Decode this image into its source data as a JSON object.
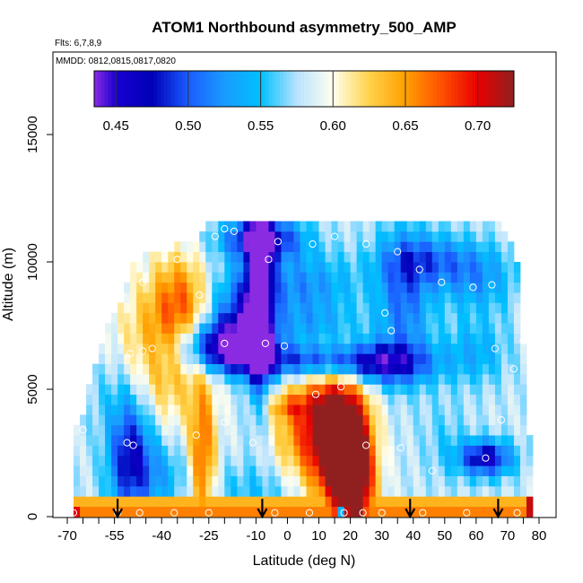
{
  "chart_data": {
    "type": "heatmap",
    "title": "ATOM1 Northbound asymmetry_500_AMP",
    "flights_text": "Flts: 6,7,8,9",
    "dates_text": "MMDD: 0812,0815,0817,0820",
    "xlabel": "Latitude (deg N)",
    "ylabel": "Altitude (m)",
    "xlim": [
      -70,
      80
    ],
    "ylim": [
      0,
      17500
    ],
    "x_ticks": [
      -70,
      -55,
      -40,
      -25,
      -10,
      0,
      10,
      20,
      30,
      40,
      50,
      60,
      70,
      80
    ],
    "x_tick_labels": [
      "-70",
      "-55",
      "-40",
      "-25",
      "-10",
      "0",
      "10",
      "20",
      "30",
      "40",
      "50",
      "60",
      "70",
      "80"
    ],
    "x_minor_ticks": [
      -65,
      -60,
      -50,
      -45,
      -35,
      -30,
      -20,
      -15,
      -5,
      5,
      15,
      25,
      35,
      45,
      55,
      65,
      75
    ],
    "y_ticks": [
      0,
      5000,
      10000,
      15000
    ],
    "y_tick_labels": [
      "0",
      "5000",
      "10000",
      "15000"
    ],
    "colorbar": {
      "vmin": 0.435,
      "vmax": 0.725,
      "ticks": [
        0.45,
        0.5,
        0.55,
        0.6,
        0.65,
        0.7
      ],
      "tick_labels": [
        "0.45",
        "0.50",
        "0.55",
        "0.60",
        "0.65",
        "0.70"
      ],
      "stops": [
        {
          "v": 0.435,
          "c": "#8a2be2"
        },
        {
          "v": 0.45,
          "c": "#1a00d0"
        },
        {
          "v": 0.475,
          "c": "#0000b8"
        },
        {
          "v": 0.5,
          "c": "#1a5cff"
        },
        {
          "v": 0.525,
          "c": "#1a9bff"
        },
        {
          "v": 0.55,
          "c": "#00c0ff"
        },
        {
          "v": 0.575,
          "c": "#b8e2ff"
        },
        {
          "v": 0.6,
          "c": "#ffffee"
        },
        {
          "v": 0.625,
          "c": "#ffd24a"
        },
        {
          "v": 0.65,
          "c": "#ffa000"
        },
        {
          "v": 0.675,
          "c": "#ff5000"
        },
        {
          "v": 0.7,
          "c": "#e80000"
        },
        {
          "v": 0.725,
          "c": "#902020"
        }
      ]
    },
    "field": {
      "x_step": 2,
      "alt_step": 400,
      "max_alt": 11400,
      "top_altitude_by_lat": [
        [
          -68,
          3200
        ],
        [
          -65,
          4000
        ],
        [
          -62,
          5500
        ],
        [
          -58,
          7000
        ],
        [
          -54,
          8000
        ],
        [
          -50,
          9500
        ],
        [
          -44,
          10200
        ],
        [
          -37,
          10300
        ],
        [
          -32,
          10600
        ],
        [
          -28,
          10800
        ],
        [
          -26,
          11400
        ],
        [
          65,
          11400
        ],
        [
          70,
          11000
        ],
        [
          72,
          10600
        ],
        [
          74,
          9400
        ],
        [
          75,
          6800
        ],
        [
          76,
          4000
        ],
        [
          77,
          3000
        ]
      ],
      "base_value": 0.58,
      "features": [
        {
          "x": 17,
          "y": 2800,
          "sx": 6,
          "sy": 1900,
          "a": 0.17
        },
        {
          "x": 8,
          "y": 3600,
          "sx": 9,
          "sy": 1700,
          "a": 0.09
        },
        {
          "x": 22,
          "y": 1200,
          "sx": 4,
          "sy": 1600,
          "a": 0.12
        },
        {
          "x": -27,
          "y": 2200,
          "sx": 3,
          "sy": 2200,
          "a": 0.09
        },
        {
          "x": -40,
          "y": 6500,
          "sx": 10,
          "sy": 2000,
          "a": 0.07
        },
        {
          "x": -34,
          "y": 8600,
          "sx": 6,
          "sy": 1300,
          "a": 0.06
        },
        {
          "x": -50,
          "y": 2400,
          "sx": 5,
          "sy": 1700,
          "a": -0.11
        },
        {
          "x": -40,
          "y": 1700,
          "sx": 6,
          "sy": 1000,
          "a": -0.04
        },
        {
          "x": -10,
          "y": 1000,
          "sx": 12,
          "sy": 800,
          "a": -0.03
        },
        {
          "x": -20,
          "y": 6800,
          "sx": 10,
          "sy": 650,
          "a": -0.13
        },
        {
          "x": -15,
          "y": 8000,
          "sx": 7,
          "sy": 1100,
          "a": -0.08
        },
        {
          "x": -9,
          "y": 8300,
          "sx": 3,
          "sy": 2600,
          "a": -0.15
        },
        {
          "x": -8,
          "y": 10900,
          "sx": 9,
          "sy": 600,
          "a": -0.12
        },
        {
          "x": 5,
          "y": 9000,
          "sx": 12,
          "sy": 900,
          "a": -0.06
        },
        {
          "x": 10,
          "y": 7500,
          "sx": 10,
          "sy": 500,
          "a": -0.04
        },
        {
          "x": 5,
          "y": 6100,
          "sx": 20,
          "sy": 500,
          "a": -0.1
        },
        {
          "x": 30,
          "y": 6000,
          "sx": 12,
          "sy": 600,
          "a": -0.08
        },
        {
          "x": 37,
          "y": 8500,
          "sx": 6,
          "sy": 1900,
          "a": -0.07
        },
        {
          "x": 45,
          "y": 10100,
          "sx": 11,
          "sy": 700,
          "a": -0.06
        },
        {
          "x": 63,
          "y": 2300,
          "sx": 6,
          "sy": 500,
          "a": -0.12
        },
        {
          "x": 50,
          "y": 3000,
          "sx": 5,
          "sy": 1100,
          "a": -0.02
        },
        {
          "x": 60,
          "y": 6500,
          "sx": 7,
          "sy": 900,
          "a": -0.04
        },
        {
          "x": 60,
          "y": 9300,
          "sx": 9,
          "sy": 900,
          "a": -0.05
        },
        {
          "x": 0,
          "y": 4300,
          "sx": 5,
          "sy": 300,
          "a": 0.04
        },
        {
          "x": -55,
          "y": 5000,
          "sx": 8,
          "sy": 1200,
          "a": -0.02
        }
      ],
      "surface": [
        {
          "y_max": 400,
          "value": 0.66
        },
        {
          "y_max": 800,
          "value": 0.64
        }
      ],
      "surface_overrides": [
        {
          "x_min": 16,
          "x_max": 18,
          "y_max": 400,
          "value": 0.54
        },
        {
          "x_min": 76,
          "x_max": 80,
          "y_max": 800,
          "value": 0.71
        },
        {
          "x_min": -70,
          "x_max": -66,
          "y_max": 400,
          "value": 0.7
        }
      ]
    },
    "sample_points": [
      {
        "lat": -68,
        "alt": 150
      },
      {
        "lat": -54,
        "alt": 150
      },
      {
        "lat": -47,
        "alt": 150
      },
      {
        "lat": -36,
        "alt": 150
      },
      {
        "lat": -25,
        "alt": 150
      },
      {
        "lat": -4,
        "alt": 150
      },
      {
        "lat": 7,
        "alt": 150
      },
      {
        "lat": 18,
        "alt": 150
      },
      {
        "lat": 24,
        "alt": 150
      },
      {
        "lat": 30,
        "alt": 150
      },
      {
        "lat": 43,
        "alt": 150
      },
      {
        "lat": 57,
        "alt": 150
      },
      {
        "lat": 73,
        "alt": 150
      },
      {
        "lat": 80,
        "alt": 150
      },
      {
        "lat": -51,
        "alt": 2900
      },
      {
        "lat": -49,
        "alt": 2800
      },
      {
        "lat": -29,
        "alt": 3200
      },
      {
        "lat": -11,
        "alt": 2900
      },
      {
        "lat": -20,
        "alt": 3700
      },
      {
        "lat": 25,
        "alt": 2800
      },
      {
        "lat": 36,
        "alt": 2700
      },
      {
        "lat": 46,
        "alt": 1800
      },
      {
        "lat": 63,
        "alt": 2300
      },
      {
        "lat": 17,
        "alt": 5100
      },
      {
        "lat": 9,
        "alt": 4800
      },
      {
        "lat": -65,
        "alt": 3400
      },
      {
        "lat": 68,
        "alt": 3800
      },
      {
        "lat": -43,
        "alt": 6600
      },
      {
        "lat": -20,
        "alt": 6800
      },
      {
        "lat": -7,
        "alt": 6800
      },
      {
        "lat": -1,
        "alt": 6700
      },
      {
        "lat": -50,
        "alt": 6400
      },
      {
        "lat": -46,
        "alt": 6500
      },
      {
        "lat": -53,
        "alt": 8700
      },
      {
        "lat": -46,
        "alt": 9200
      },
      {
        "lat": -28,
        "alt": 8700
      },
      {
        "lat": 31,
        "alt": 8000
      },
      {
        "lat": 33,
        "alt": 7300
      },
      {
        "lat": 49,
        "alt": 9200
      },
      {
        "lat": 59,
        "alt": 9000
      },
      {
        "lat": 65,
        "alt": 9100
      },
      {
        "lat": 66,
        "alt": 6600
      },
      {
        "lat": 72,
        "alt": 5800
      },
      {
        "lat": 75,
        "alt": 6900
      },
      {
        "lat": -23,
        "alt": 11000
      },
      {
        "lat": -17,
        "alt": 11200
      },
      {
        "lat": -20,
        "alt": 11300
      },
      {
        "lat": -3,
        "alt": 10800
      },
      {
        "lat": -6,
        "alt": 10100
      },
      {
        "lat": 8,
        "alt": 10700
      },
      {
        "lat": 15,
        "alt": 11000
      },
      {
        "lat": 25,
        "alt": 10700
      },
      {
        "lat": 35,
        "alt": 10400
      },
      {
        "lat": 42,
        "alt": 9700
      },
      {
        "lat": 72,
        "alt": 11100
      },
      {
        "lat": -35,
        "alt": 10100
      }
    ],
    "arrows": [
      {
        "lat": -54,
        "alt_top": 700,
        "alt_bottom": 0
      },
      {
        "lat": -8,
        "alt_top": 700,
        "alt_bottom": 0
      },
      {
        "lat": 39,
        "alt_top": 700,
        "alt_bottom": 0
      },
      {
        "lat": 67,
        "alt_top": 700,
        "alt_bottom": 0
      }
    ]
  }
}
